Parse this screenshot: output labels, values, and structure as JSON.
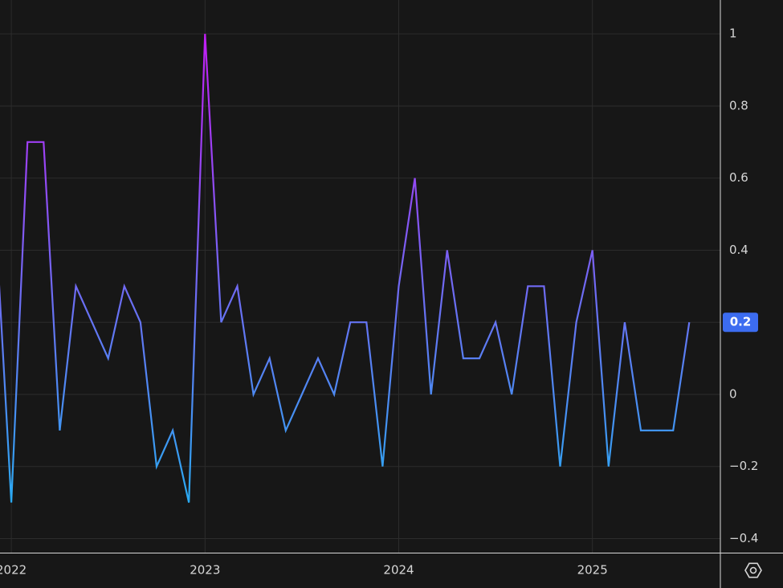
{
  "chart_data": {
    "type": "line",
    "categories": [
      null,
      "2022",
      null,
      null,
      null,
      null,
      null,
      null,
      null,
      null,
      null,
      null,
      null,
      "2023",
      null,
      null,
      null,
      null,
      null,
      null,
      null,
      null,
      null,
      null,
      null,
      "2024",
      null,
      null,
      null,
      null,
      null,
      null,
      null,
      null,
      null,
      null,
      null,
      "2025",
      null,
      null,
      null,
      null,
      null,
      null
    ],
    "series": [
      {
        "values": [
          0.5,
          -0.3,
          0.7,
          0.7,
          -0.1,
          0.3,
          0.2,
          0.1,
          0.3,
          0.2,
          -0.2,
          -0.1,
          -0.3,
          1.0,
          0.2,
          0.3,
          0.0,
          0.1,
          -0.1,
          0.0,
          0.1,
          0.0,
          0.2,
          0.2,
          -0.2,
          0.3,
          0.6,
          0.0,
          0.4,
          0.1,
          0.1,
          0.2,
          0.0,
          0.3,
          0.3,
          -0.2,
          0.2,
          0.4,
          -0.2,
          0.2,
          -0.1,
          -0.1,
          -0.1,
          0.2
        ],
        "gradient": [
          "#c21ef5",
          "#2aaaf2"
        ]
      }
    ],
    "ylim": [
      1.094,
      -0.439
    ],
    "yticks": [
      1,
      0.8,
      0.6,
      0.4,
      0.2,
      0,
      {
        "value": -0.2,
        "label": "−0.2"
      },
      {
        "value": -0.4,
        "label": "−0.4"
      }
    ],
    "grid": true,
    "last_value_color": "#3c6cf0"
  }
}
